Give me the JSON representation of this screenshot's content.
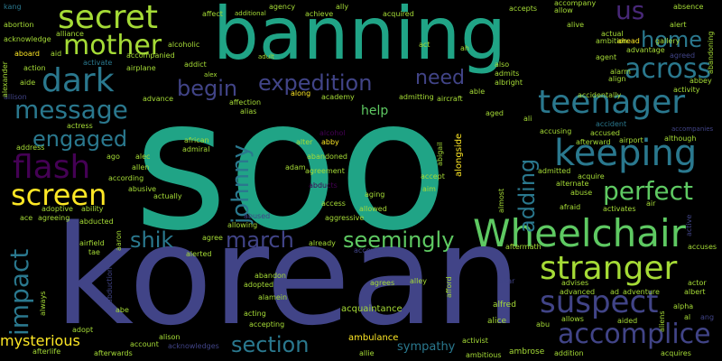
{
  "palette": {
    "background": "#000000",
    "teal": "#20a486",
    "indigo": "#414487",
    "steel": "#2a788e",
    "lime": "#a5db36",
    "green": "#5ec962",
    "purple": "#482878",
    "deep": "#440154",
    "yellow": "#fde725"
  },
  "words": {
    "soo": "soo",
    "korean": "korean",
    "banning": "banning",
    "wheelchair": "Wheelchair",
    "secret": "secret",
    "mother": "mother",
    "dark": "dark",
    "us": "us",
    "home": "home",
    "across": "across",
    "teenager": "teenager",
    "message": "message",
    "expedition": "expedition",
    "begin": "begin",
    "need": "need",
    "keeping": "keeping",
    "engaged": "engaged",
    "flash": "flash",
    "screen": "screen",
    "johnny": "johnny",
    "adding": "adding",
    "perfect": "perfect",
    "stranger": "stranger",
    "impact": "impact",
    "shik": "shik",
    "march": "march",
    "seemingly": "seemingly",
    "suspect": "suspect",
    "accomplice": "accomplice",
    "section": "section",
    "mysterious": "mysterious",
    "help": "help",
    "sympathy": "sympathy",
    "ambulance": "ambulance",
    "acquaintance": "acquaintance",
    "alfred": "alfred",
    "alice": "alice",
    "abortion": "abortion",
    "acknowledge": "acknowledge",
    "aboard": "aboard",
    "aid": "aid",
    "alliance": "alliance",
    "accompanied": "accompanied",
    "alcoholic": "alcoholic",
    "affect": "affect",
    "additional": "additional",
    "agency": "agency",
    "ally": "ally",
    "achieve": "achieve",
    "acquired": "acquired",
    "act": "act",
    "accepts": "accepts",
    "accompany": "accompany",
    "allow": "allow",
    "alive": "alive",
    "ambition": "ambition",
    "ahead": "ahead",
    "gallery": "gallery",
    "absence": "absence",
    "alert": "alert",
    "abandoning": "abandoning",
    "kang": "kang",
    "action": "action",
    "aide": "aide",
    "activate": "activate",
    "airplane": "airplane",
    "addict": "addict",
    "adult": "adult",
    "ah": "ah",
    "also": "also",
    "admits": "admits",
    "albright": "albright",
    "advantage": "advantage",
    "alarm": "alarm",
    "align": "align",
    "abbey": "abbey",
    "agreed": "agreed",
    "activity": "activity",
    "accidentally": "accidentally",
    "actual": "actual",
    "agent": "agent",
    "alex": "alex",
    "allison": "allison",
    "alexander": "alexander",
    "advance": "advance",
    "affection": "affection",
    "alias": "alias",
    "along": "along",
    "academy": "academy",
    "admitting": "admitting",
    "aircraft": "aircraft",
    "able": "able",
    "aged": "aged",
    "ali": "ali",
    "actress": "actress",
    "ago": "ago",
    "address": "address",
    "african": "african",
    "admiral": "admiral",
    "alec": "alec",
    "allen": "allen",
    "according": "according",
    "alter": "alter",
    "abby": "abby",
    "adam": "adam",
    "abandoned": "abandoned",
    "agreement": "agreement",
    "abigail": "abigail",
    "alongside": "alongside",
    "accept": "accept",
    "aim": "aim",
    "accusing": "accusing",
    "accused": "accused",
    "accident": "accident",
    "afterward": "afterward",
    "airport": "airport",
    "although": "although",
    "accompanies": "accompanies",
    "admitted": "admitted",
    "acquire": "acquire",
    "alternate": "alternate",
    "abuse": "abuse",
    "afraid": "afraid",
    "activates": "activates",
    "air": "air",
    "active": "active",
    "almost": "almost",
    "abducts": "abducts",
    "aging": "aging",
    "access": "access",
    "allowed": "allowed",
    "aggressive": "aggressive",
    "abusive": "abusive",
    "actually": "actually",
    "adoptive": "adoptive",
    "ability": "ability",
    "ace": "ace",
    "agreeing": "agreeing",
    "abducted": "abducted",
    "abused": "abused",
    "allowing": "allowing",
    "alerted": "alerted",
    "already": "already",
    "accepted": "accepted",
    "agree": "agree",
    "airfield": "airfield",
    "tae": "tae",
    "aaron": "aaron",
    "abduction": "abduction",
    "abandon": "abandon",
    "adopted": "adopted",
    "alamein": "alamein",
    "agrees": "agrees",
    "alley": "alley",
    "afford": "afford",
    "altar": "altar",
    "advises": "advises",
    "advanced": "advanced",
    "aftermath": "aftermath",
    "accuses": "accuses",
    "actor": "actor",
    "adventure": "adventure",
    "albert": "albert",
    "alpha": "alpha",
    "always": "always",
    "abe": "abe",
    "acting": "acting",
    "accepting": "accepting",
    "aided": "aided",
    "allows": "allows",
    "aliens": "aliens",
    "ang": "ang",
    "al": "al",
    "abu": "abu",
    "adopt": "adopt",
    "alison": "alison",
    "account": "account",
    "acknowledges": "acknowledges",
    "activist": "activist",
    "ambitious": "ambitious",
    "ambrose": "ambrose",
    "addition": "addition",
    "acquires": "acquires",
    "afterlife": "afterlife",
    "afterwards": "afterwards",
    "allie": "allie",
    "alcohol": "alcohol",
    "ad": "ad"
  }
}
